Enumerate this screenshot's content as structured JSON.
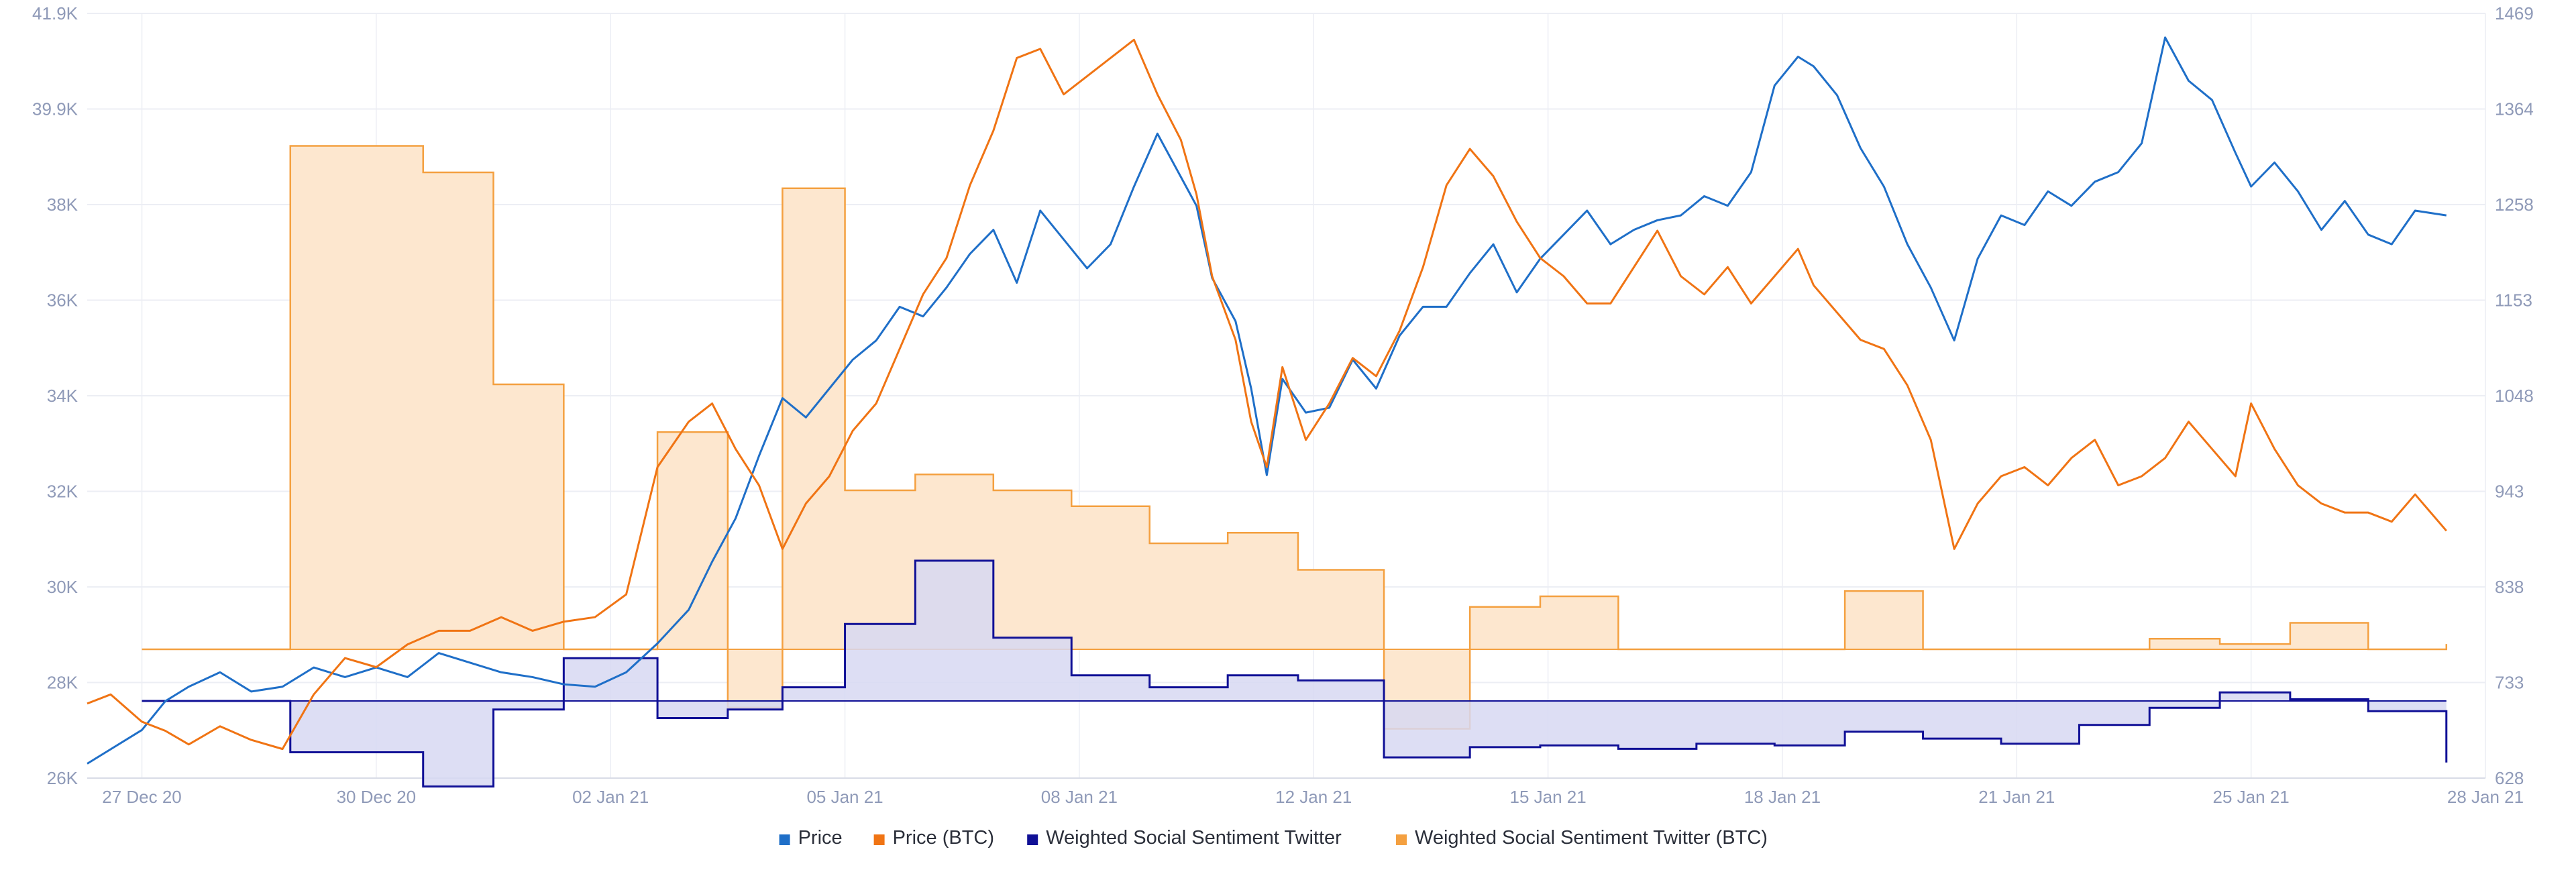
{
  "chart_data": {
    "type": "line",
    "x_ticks": [
      "27 Dec 20",
      "30 Dec 20",
      "02 Jan 21",
      "05 Jan 21",
      "08 Jan 21",
      "12 Jan 21",
      "15 Jan 21",
      "18 Jan 21",
      "21 Jan 21",
      "25 Jan 21",
      "28 Jan 21"
    ],
    "x_tick_pos": [
      0.0,
      3.0,
      6.0,
      9.0,
      12.0,
      15.0,
      18.0,
      21.0,
      24.0,
      27.0,
      30.0
    ],
    "xlim": [
      -0.7,
      30.0
    ],
    "y_left": {
      "ticks": [
        "41.9K",
        "39.9K",
        "38K",
        "36K",
        "34K",
        "32K",
        "30K",
        "28K",
        "26K"
      ],
      "ylim": [
        26000,
        41900
      ]
    },
    "y_right": {
      "ticks": [
        "1469",
        "1364",
        "1258",
        "1153",
        "1048",
        "943",
        "838",
        "733",
        "628"
      ],
      "ylim": [
        628,
        1469
      ]
    },
    "colors": {
      "price": "#1f6fc8",
      "price_btc": "#f07414",
      "sentiment": "#101096",
      "sentiment_btc": "#f4a040",
      "sentiment_fill": "#d7d8f2",
      "sentiment_btc_fill": "#fde7cf",
      "overlap_fill": "#dcc9d0",
      "grid": "#eceef4"
    },
    "series": [
      {
        "name": "Price",
        "axis": "left",
        "x": [
          -0.7,
          -0.4,
          0,
          0.3,
          0.6,
          1,
          1.4,
          1.8,
          2.2,
          2.6,
          3,
          3.4,
          3.8,
          4.2,
          4.6,
          5,
          5.4,
          5.8,
          6.2,
          6.6,
          7,
          7.3,
          7.6,
          7.9,
          8.2,
          8.5,
          8.8,
          9.1,
          9.4,
          9.7,
          10,
          10.3,
          10.6,
          10.9,
          11.2,
          11.5,
          11.8,
          12.1,
          12.4,
          12.7,
          13,
          13.3,
          13.5,
          13.7,
          14,
          14.2,
          14.4,
          14.6,
          14.9,
          15.2,
          15.5,
          15.8,
          16.1,
          16.4,
          16.7,
          17,
          17.3,
          17.6,
          17.9,
          18.2,
          18.5,
          18.8,
          19.1,
          19.4,
          19.7,
          20,
          20.3,
          20.6,
          20.9,
          21.2,
          21.4,
          21.7,
          22,
          22.3,
          22.6,
          22.9,
          23.2,
          23.5,
          23.8,
          24.1,
          24.4,
          24.7,
          25,
          25.3,
          25.6,
          25.9,
          26.2,
          26.5,
          26.8,
          27,
          27.3,
          27.6,
          27.9,
          28.2,
          28.5,
          28.8,
          29.1,
          29.5
        ],
        "y": [
          26300,
          26600,
          27000,
          27600,
          27900,
          28200,
          27800,
          27900,
          28300,
          28100,
          28300,
          28100,
          28600,
          28400,
          28200,
          28100,
          27950,
          27900,
          28200,
          28800,
          29500,
          30500,
          31400,
          32700,
          33900,
          33500,
          34100,
          34700,
          35100,
          35800,
          35600,
          36200,
          36900,
          37400,
          36300,
          37800,
          37200,
          36600,
          37100,
          38300,
          39400,
          38500,
          37900,
          36400,
          35500,
          34100,
          32300,
          34300,
          33600,
          33700,
          34700,
          34100,
          35200,
          35800,
          35800,
          36500,
          37100,
          36100,
          36800,
          37300,
          37800,
          37100,
          37400,
          37600,
          37700,
          38100,
          37900,
          38600,
          40400,
          41000,
          40800,
          40200,
          39100,
          38300,
          37100,
          36200,
          35100,
          36800,
          37700,
          37500,
          38200,
          37900,
          38400,
          38600,
          39200,
          41400,
          40500,
          40100,
          39000,
          38300,
          38800,
          38200,
          37400,
          38000,
          37300,
          37100,
          37800,
          37700
        ]
      },
      {
        "name": "Price (BTC)",
        "axis": "right",
        "x": [
          -0.7,
          -0.4,
          0,
          0.3,
          0.6,
          1,
          1.4,
          1.8,
          2.2,
          2.6,
          3,
          3.4,
          3.8,
          4.2,
          4.6,
          5,
          5.4,
          5.8,
          6.2,
          6.6,
          7,
          7.3,
          7.6,
          7.9,
          8.2,
          8.5,
          8.8,
          9.1,
          9.4,
          9.7,
          10,
          10.3,
          10.6,
          10.9,
          11.2,
          11.5,
          11.8,
          12.1,
          12.4,
          12.7,
          13,
          13.3,
          13.5,
          13.7,
          14,
          14.2,
          14.4,
          14.6,
          14.9,
          15.2,
          15.5,
          15.8,
          16.1,
          16.4,
          16.7,
          17,
          17.3,
          17.6,
          17.9,
          18.2,
          18.5,
          18.8,
          19.1,
          19.4,
          19.7,
          20,
          20.3,
          20.6,
          20.9,
          21.2,
          21.4,
          21.7,
          22,
          22.3,
          22.6,
          22.9,
          23.2,
          23.5,
          23.8,
          24.1,
          24.4,
          24.7,
          25,
          25.3,
          25.6,
          25.9,
          26.2,
          26.5,
          26.8,
          27,
          27.3,
          27.6,
          27.9,
          28.2,
          28.5,
          28.8,
          29.1,
          29.5
        ],
        "y": [
          710,
          720,
          690,
          680,
          665,
          685,
          670,
          660,
          720,
          760,
          750,
          775,
          790,
          790,
          805,
          790,
          800,
          805,
          830,
          970,
          1020,
          1040,
          990,
          950,
          880,
          930,
          960,
          1010,
          1040,
          1100,
          1160,
          1200,
          1280,
          1340,
          1420,
          1430,
          1380,
          1400,
          1420,
          1440,
          1380,
          1330,
          1270,
          1180,
          1110,
          1020,
          970,
          1080,
          1000,
          1040,
          1090,
          1070,
          1120,
          1190,
          1280,
          1320,
          1290,
          1240,
          1200,
          1180,
          1150,
          1150,
          1190,
          1230,
          1180,
          1160,
          1190,
          1150,
          1180,
          1210,
          1170,
          1140,
          1110,
          1100,
          1060,
          1000,
          880,
          930,
          960,
          970,
          950,
          980,
          1000,
          950,
          960,
          980,
          1020,
          990,
          960,
          1040,
          990,
          950,
          930,
          920,
          920,
          910,
          940,
          900
        ]
      },
      {
        "name": "Weighted Social Sentiment Twitter",
        "axis": "hidden_sentiment",
        "baseline": 0.0,
        "x": [
          0.0,
          1.0,
          1.9,
          3.6,
          4.5,
          5.4,
          6.6,
          7.5,
          8.2,
          9.0,
          9.9,
          10.9,
          11.9,
          12.9,
          13.9,
          14.8,
          15.9,
          17.0,
          17.9,
          18.9,
          19.9,
          20.9,
          21.8,
          22.8,
          23.8,
          24.8,
          25.7,
          26.6,
          27.5,
          28.5,
          29.5
        ],
        "y": [
          0.0,
          0.0,
          -0.3,
          -0.5,
          -0.05,
          0.25,
          -0.1,
          -0.05,
          0.08,
          0.45,
          0.82,
          0.37,
          0.15,
          0.08,
          0.15,
          0.12,
          -0.33,
          -0.27,
          -0.26,
          -0.28,
          -0.25,
          -0.26,
          -0.18,
          -0.22,
          -0.25,
          -0.14,
          -0.04,
          0.05,
          0.01,
          -0.06,
          -0.36
        ]
      },
      {
        "name": "Weighted Social Sentiment Twitter (BTC)",
        "axis": "hidden_sentiment_btc",
        "baseline": 0.0,
        "x": [
          0.0,
          1.0,
          1.9,
          3.6,
          4.5,
          5.4,
          6.6,
          7.5,
          8.2,
          9.0,
          9.9,
          10.9,
          11.9,
          12.9,
          13.9,
          14.8,
          15.9,
          17.0,
          17.9,
          18.9,
          19.9,
          20.9,
          21.8,
          22.8,
          23.8,
          24.8,
          25.7,
          26.6,
          27.5,
          28.5,
          29.5
        ],
        "y": [
          0.0,
          0.0,
          0.95,
          0.9,
          0.5,
          0.0,
          0.41,
          -0.11,
          0.87,
          0.3,
          0.33,
          0.3,
          0.27,
          0.2,
          0.22,
          0.15,
          -0.15,
          0.08,
          0.1,
          0.0,
          0.0,
          0.0,
          0.11,
          0.0,
          0.0,
          0.0,
          0.02,
          0.01,
          0.05,
          0.0,
          0.01
        ]
      }
    ],
    "legend": [
      {
        "label": "Price",
        "color": "#1f6fc8"
      },
      {
        "label": "Price (BTC)",
        "color": "#f07414"
      },
      {
        "label": "Weighted Social Sentiment Twitter",
        "color": "#101096"
      },
      {
        "label": "Weighted Social Sentiment Twitter (BTC)",
        "color": "#f4a040"
      }
    ],
    "legend_position": "bottom-center",
    "grid": true
  }
}
